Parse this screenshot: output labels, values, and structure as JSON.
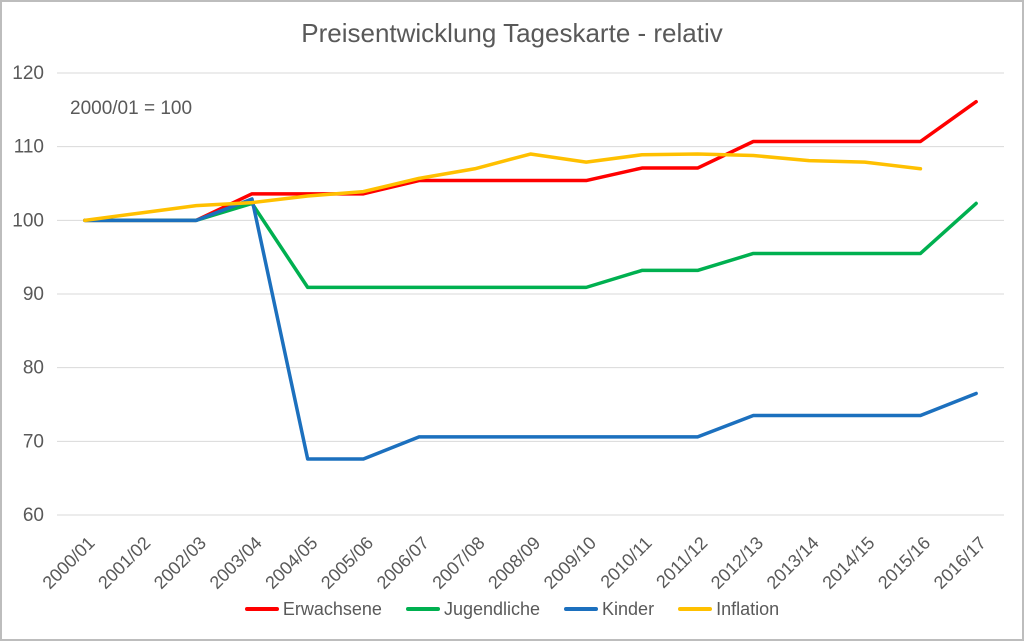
{
  "chart_data": {
    "type": "line",
    "title": "Preisentwicklung Tageskarte - relativ",
    "annotation": "2000/01 = 100",
    "categories": [
      "2000/01",
      "2001/02",
      "2002/03",
      "2003/04",
      "2004/05",
      "2005/06",
      "2006/07",
      "2007/08",
      "2008/09",
      "2009/10",
      "2010/11",
      "2011/12",
      "2012/13",
      "2013/14",
      "2014/15",
      "2015/16",
      "2016/17"
    ],
    "series": [
      {
        "name": "Erwachsene",
        "color": "#FF0000",
        "values": [
          100,
          100,
          100,
          103.6,
          103.6,
          103.6,
          105.4,
          105.4,
          105.4,
          105.4,
          107.1,
          107.1,
          110.7,
          110.7,
          110.7,
          110.7,
          116.1
        ]
      },
      {
        "name": "Jugendliche",
        "color": "#00B050",
        "values": [
          100,
          100,
          100,
          102.3,
          90.9,
          90.9,
          90.9,
          90.9,
          90.9,
          90.9,
          93.2,
          93.2,
          95.5,
          95.5,
          95.5,
          95.5,
          102.3
        ]
      },
      {
        "name": "Kinder",
        "color": "#1C70BE",
        "values": [
          100,
          100,
          100,
          102.9,
          67.6,
          67.6,
          70.6,
          70.6,
          70.6,
          70.6,
          70.6,
          70.6,
          73.5,
          73.5,
          73.5,
          73.5,
          76.5
        ]
      },
      {
        "name": "Inflation",
        "color": "#FFC000",
        "values": [
          100,
          101,
          102,
          102.4,
          103.3,
          103.9,
          105.7,
          107,
          109,
          107.9,
          108.9,
          109,
          108.8,
          108.1,
          107.9,
          107,
          null
        ]
      }
    ],
    "yticks": [
      120,
      110,
      100,
      90,
      80,
      70,
      60
    ],
    "ylim": [
      60,
      120
    ],
    "grid": "horizontal-only",
    "gridline_color": "#D9D9D9",
    "axis_text_color": "#595959",
    "legend_position": "bottom"
  }
}
